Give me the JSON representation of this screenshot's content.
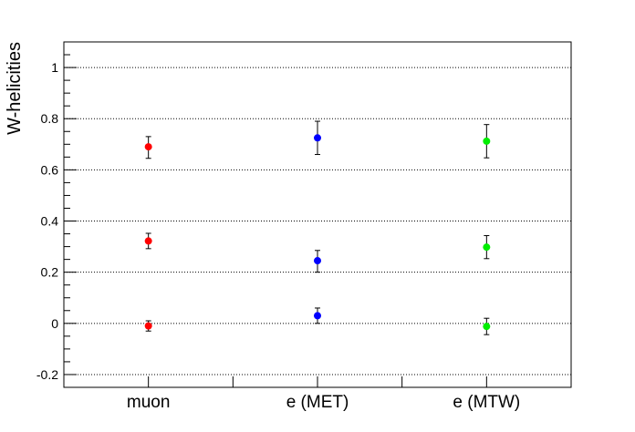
{
  "chart_data": {
    "type": "scatter",
    "ylabel": "W-helicities",
    "xlabel": "",
    "categories": [
      "muon",
      "e (MET)",
      "e (MTW)"
    ],
    "ylim": [
      -0.25,
      1.1
    ],
    "yticks": [
      -0.2,
      0,
      0.2,
      0.4,
      0.6,
      0.8,
      1
    ],
    "ytick_labels": [
      "-0.2",
      "0",
      "0.2",
      "0.4",
      "0.6",
      "0.8",
      "1"
    ],
    "grid": "horizontal dotted",
    "series": [
      {
        "category": "muon",
        "color": "#ff0000",
        "points": [
          {
            "y": 0.69,
            "err_low": 0.045,
            "err_high": 0.04
          },
          {
            "y": 0.322,
            "err_low": 0.03,
            "err_high": 0.03
          },
          {
            "y": -0.01,
            "err_low": 0.02,
            "err_high": 0.02
          }
        ]
      },
      {
        "category": "e (MET)",
        "color": "#0000ff",
        "points": [
          {
            "y": 0.725,
            "err_low": 0.065,
            "err_high": 0.065
          },
          {
            "y": 0.245,
            "err_low": 0.045,
            "err_high": 0.04
          },
          {
            "y": 0.03,
            "err_low": 0.03,
            "err_high": 0.03
          }
        ]
      },
      {
        "category": "e (MTW)",
        "color": "#00ee00",
        "points": [
          {
            "y": 0.712,
            "err_low": 0.065,
            "err_high": 0.065
          },
          {
            "y": 0.298,
            "err_low": 0.045,
            "err_high": 0.045
          },
          {
            "y": -0.012,
            "err_low": 0.032,
            "err_high": 0.032
          }
        ]
      }
    ]
  }
}
